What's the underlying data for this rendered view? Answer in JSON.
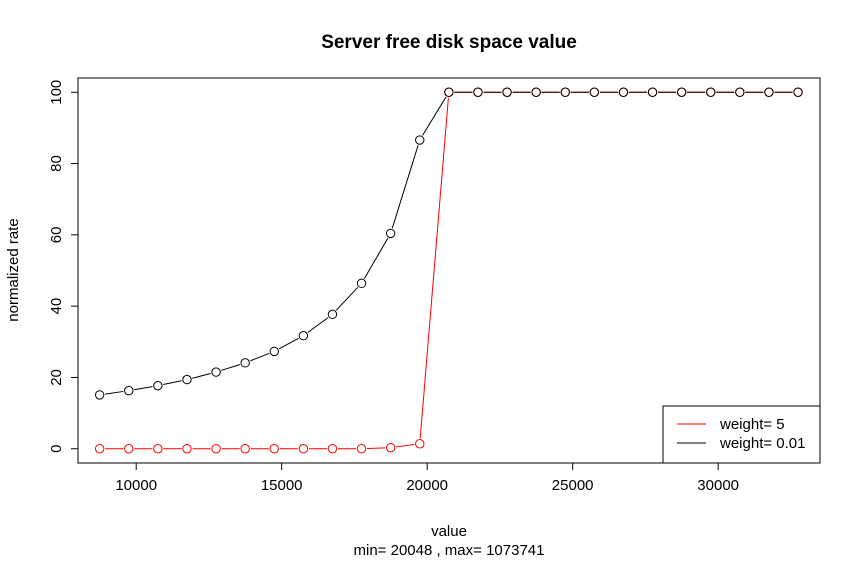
{
  "chart_data": {
    "type": "line",
    "title": "Server free disk space value",
    "xlabel": "value",
    "ylabel": "normalized rate",
    "subtitle": "min= 20048 , max= 1073741",
    "xlim": [
      8000,
      33500
    ],
    "ylim": [
      -4,
      104
    ],
    "x_ticks": [
      10000,
      15000,
      20000,
      25000,
      30000
    ],
    "y_ticks": [
      0,
      20,
      40,
      60,
      80,
      100
    ],
    "x": [
      8745,
      9745,
      10745,
      11745,
      12745,
      13745,
      14745,
      15745,
      16745,
      17745,
      18745,
      19745,
      20745,
      21745,
      22745,
      23745,
      24745,
      25745,
      26745,
      27745,
      28745,
      29745,
      30745,
      31745,
      32745
    ],
    "series": [
      {
        "name": "weight= 5",
        "color": "#ff0000",
        "values": [
          0,
          0,
          0,
          0,
          0,
          0,
          0,
          0,
          0,
          0,
          0.3,
          1.4,
          100,
          100,
          100,
          100,
          100,
          100,
          100,
          100,
          100,
          100,
          100,
          100,
          100
        ]
      },
      {
        "name": "weight= 0.01",
        "color": "#000000",
        "values": [
          15.1,
          16.3,
          17.7,
          19.4,
          21.5,
          24.1,
          27.3,
          31.7,
          37.7,
          46.4,
          60.4,
          86.6,
          100,
          100,
          100,
          100,
          100,
          100,
          100,
          100,
          100,
          100,
          100,
          100,
          100
        ]
      }
    ],
    "legend_position": "bottom-right",
    "grid": false
  }
}
